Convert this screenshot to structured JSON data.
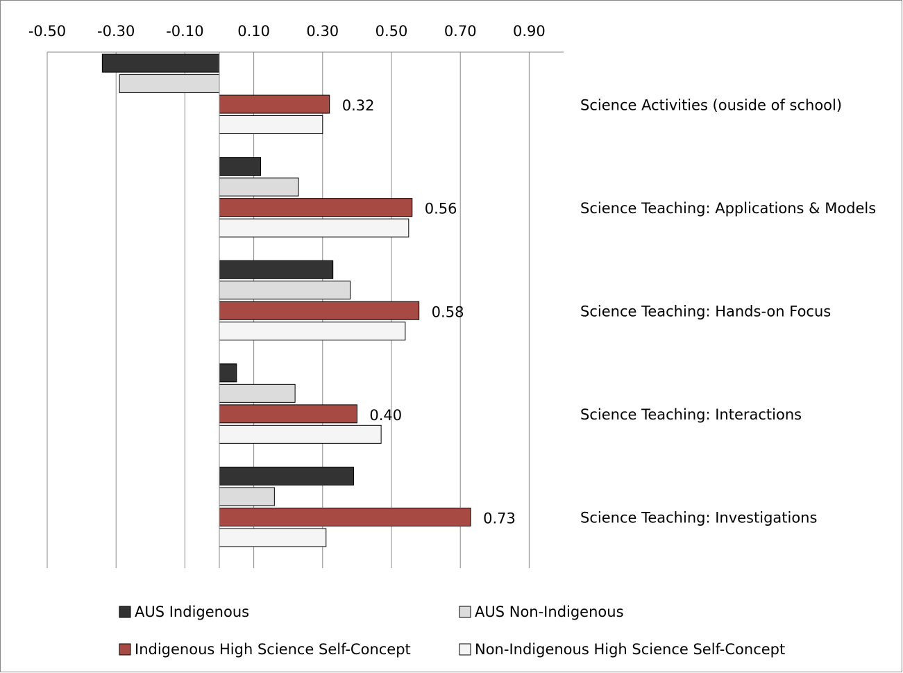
{
  "chart_data": {
    "type": "barh",
    "categories": [
      "Science Activities (ouside of school)",
      "Science Teaching: Applications & Models",
      "Science Teaching: Hands-on Focus",
      "Science Teaching: Interactions",
      "Science Teaching: Investigations"
    ],
    "series": [
      {
        "name": "AUS Indigenous",
        "color": "#333333",
        "values": [
          -0.34,
          0.12,
          0.33,
          0.05,
          0.39
        ]
      },
      {
        "name": "AUS Non-Indigenous",
        "color": "#dcdcdc",
        "values": [
          -0.29,
          0.23,
          0.38,
          0.22,
          0.16
        ]
      },
      {
        "name": "Indigenous High Science Self-Concept",
        "color": "#a84a44",
        "values": [
          0.32,
          0.56,
          0.58,
          0.4,
          0.73
        ],
        "value_labels": [
          "0.32",
          "0.56",
          "0.58",
          "0.40",
          "0.73"
        ]
      },
      {
        "name": "Non-Indigenous High Science Self-Concept",
        "color": "#f5f5f5",
        "values": [
          0.3,
          0.55,
          0.54,
          0.47,
          0.31
        ]
      }
    ],
    "xlim": [
      -0.5,
      1.0
    ],
    "xticks": [
      {
        "value": -0.5,
        "label": "-0.50"
      },
      {
        "value": -0.3,
        "label": "-0.30"
      },
      {
        "value": -0.1,
        "label": "-0.10"
      },
      {
        "value": 0.1,
        "label": "0.10"
      },
      {
        "value": 0.3,
        "label": "0.30"
      },
      {
        "value": 0.5,
        "label": "0.50"
      },
      {
        "value": 0.7,
        "label": "0.70"
      },
      {
        "value": 0.9,
        "label": "0.90"
      }
    ],
    "grid": true,
    "legend": "bottom"
  }
}
